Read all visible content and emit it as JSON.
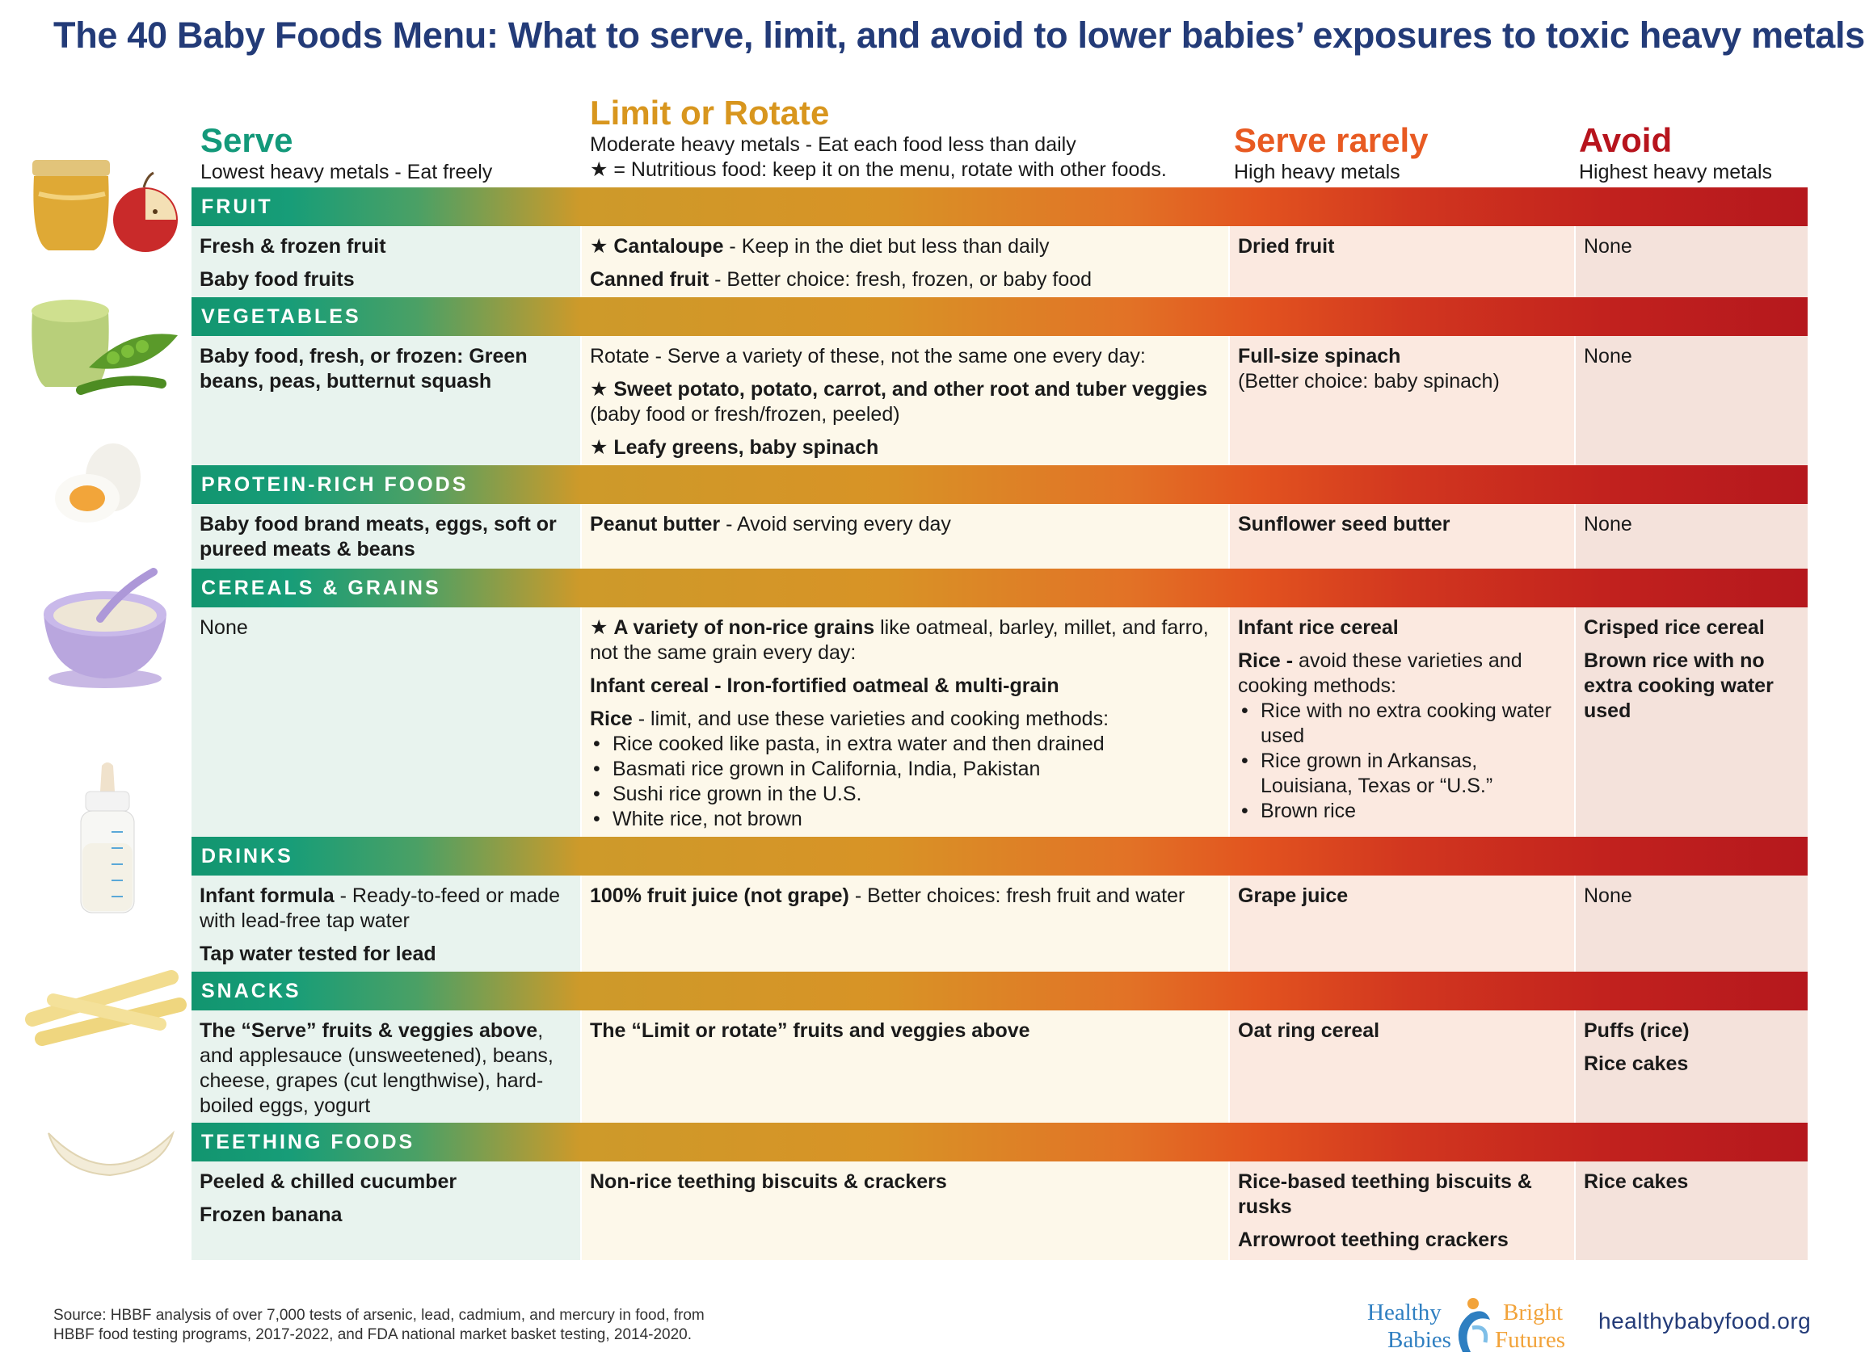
{
  "title": "The 40 Baby Foods Menu: What to serve, limit, and avoid to lower babies’ exposures to toxic heavy metals",
  "colors": {
    "title": "#233b78",
    "serve": "#13997a",
    "limit": "#d8961e",
    "rarely": "#e85a22",
    "avoid": "#b7141d"
  },
  "columns": {
    "serve": {
      "title": "Serve",
      "sub": "Lowest heavy metals - Eat freely"
    },
    "limit": {
      "title": "Limit or Rotate",
      "sub1": "Moderate heavy metals - Eat each food less than daily",
      "sub2": "★ = Nutritious food: keep it on the menu, rotate with other foods."
    },
    "rarely": {
      "title": "Serve rarely",
      "sub": "High heavy metals"
    },
    "avoid": {
      "title": "Avoid",
      "sub": "Highest heavy metals"
    }
  },
  "sections": {
    "fruit": {
      "label": "FRUIT",
      "serve": {
        "a": "Fresh & frozen fruit",
        "b": "Baby food fruits"
      },
      "limit": {
        "a_bold": "Cantaloupe",
        "a_rest": " - Keep in the diet but less than daily",
        "b_bold": "Canned fruit",
        "b_rest": " - Better choice: fresh, frozen, or baby food"
      },
      "rarely": {
        "a": "Dried fruit"
      },
      "avoid": {
        "a": "None"
      }
    },
    "vegetables": {
      "label": "VEGETABLES",
      "serve": {
        "a": "Baby food, fresh, or frozen: Green beans, peas, butternut squash"
      },
      "limit": {
        "intro": "Rotate - Serve a variety of these, not the same one every day:",
        "b_bold": "Sweet potato, potato, carrot, and other root and tuber veggies",
        "b_rest": " (baby food or fresh/frozen, peeled)",
        "c_bold": "Leafy greens, baby spinach"
      },
      "rarely": {
        "a": "Full-size spinach",
        "b": "(Better choice: baby spinach)"
      },
      "avoid": {
        "a": "None"
      }
    },
    "protein": {
      "label": "PROTEIN-RICH FOODS",
      "serve": {
        "a": "Baby food brand meats, eggs, soft or pureed meats & beans"
      },
      "limit": {
        "a_bold": "Peanut butter",
        "a_rest": " - Avoid serving every day"
      },
      "rarely": {
        "a": "Sunflower seed butter"
      },
      "avoid": {
        "a": "None"
      }
    },
    "cereals": {
      "label": "CEREALS & GRAINS",
      "serve": {
        "a": "None"
      },
      "limit": {
        "a_bold": "A variety of non-rice grains",
        "a_rest": " like oatmeal, barley, millet, and farro, not the same grain every day:",
        "b": "Infant cereal - Iron-fortified oatmeal & multi-grain",
        "c_bold": "Rice",
        "c_rest": " - limit, and use these varieties and cooking methods:",
        "list": [
          "Rice cooked like pasta, in extra water and then drained",
          "Basmati rice grown in California, India, Pakistan",
          "Sushi rice grown in the U.S.",
          "White rice, not brown"
        ]
      },
      "rarely": {
        "a": "Infant rice cereal",
        "b_bold": "Rice -",
        "b_rest": " avoid these varieties and cooking methods:",
        "list": [
          "Rice with no extra cooking water used",
          "Rice grown in Arkansas, Louisiana, Texas or “U.S.”",
          "Brown rice"
        ]
      },
      "avoid": {
        "a": "Crisped rice cereal",
        "b": "Brown rice with no extra cooking water used"
      }
    },
    "drinks": {
      "label": "DRINKS",
      "serve": {
        "a_bold": "Infant formula",
        "a_rest": " - Ready-to-feed or made with lead-free tap water",
        "b": "Tap water tested for lead"
      },
      "limit": {
        "a_bold": "100% fruit juice (not grape)",
        "a_rest": " - Better choices: fresh fruit and water"
      },
      "rarely": {
        "a": "Grape juice"
      },
      "avoid": {
        "a": "None"
      }
    },
    "snacks": {
      "label": "SNACKS",
      "serve": {
        "a_bold": "The “Serve” fruits & veggies above",
        "a_rest": ", and applesauce (unsweetened), beans, cheese, grapes (cut lengthwise), hard-boiled eggs, yogurt"
      },
      "limit": {
        "a": "The “Limit or rotate” fruits and veggies above"
      },
      "rarely": {
        "a": "Oat ring cereal"
      },
      "avoid": {
        "a": "Puffs (rice)",
        "b": "Rice cakes"
      }
    },
    "teething": {
      "label": "TEETHING FOODS",
      "serve": {
        "a": "Peeled & chilled cucumber",
        "b": "Frozen banana"
      },
      "limit": {
        "a": "Non-rice teething biscuits & crackers"
      },
      "rarely": {
        "a": "Rice-based teething biscuits & rusks",
        "b": "Arrowroot teething crackers"
      },
      "avoid": {
        "a": "Rice cakes"
      }
    }
  },
  "footer": {
    "source1": "Source: HBBF analysis of over 7,000 tests of arsenic, lead, cadmium, and mercury in food, from",
    "source2": "HBBF food testing programs, 2017-2022, and FDA national market basket testing, 2014-2020.",
    "logo_left1": "Healthy",
    "logo_left2": "Babies",
    "logo_right1": "Bright",
    "logo_right2": "Futures",
    "website": "healthybabyfood.org"
  }
}
